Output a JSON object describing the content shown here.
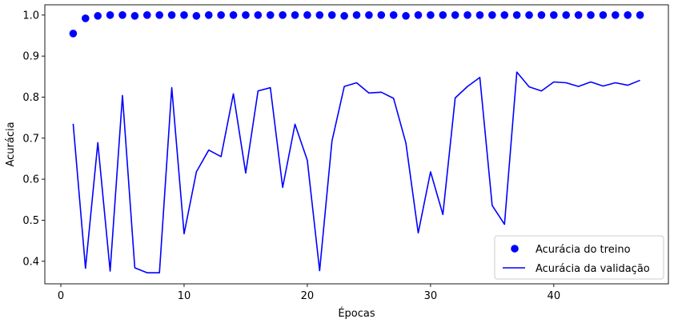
{
  "chart_data": {
    "type": "line",
    "xlabel": "Épocas",
    "ylabel": "Acurácia",
    "xlim": [
      -1.3,
      49.3
    ],
    "ylim": [
      0.345,
      1.025
    ],
    "xticks": [
      0,
      10,
      20,
      30,
      40
    ],
    "yticks": [
      0.4,
      0.5,
      0.6,
      0.7,
      0.8,
      0.9,
      1.0
    ],
    "grid": false,
    "legend_position": "lower-right",
    "x": [
      1,
      2,
      3,
      4,
      5,
      6,
      7,
      8,
      9,
      10,
      11,
      12,
      13,
      14,
      15,
      16,
      17,
      18,
      19,
      20,
      21,
      22,
      23,
      24,
      25,
      26,
      27,
      28,
      29,
      30,
      31,
      32,
      33,
      34,
      35,
      36,
      37,
      38,
      39,
      40,
      41,
      42,
      43,
      44,
      45,
      46,
      47
    ],
    "series": [
      {
        "name": "Acurácia do treino",
        "style": "markers",
        "color": "#0000ff",
        "values": [
          0.955,
          0.992,
          0.998,
          1.0,
          1.0,
          0.998,
          1.0,
          1.0,
          1.0,
          1.0,
          0.998,
          1.0,
          1.0,
          1.0,
          1.0,
          1.0,
          1.0,
          1.0,
          1.0,
          1.0,
          1.0,
          1.0,
          0.998,
          1.0,
          1.0,
          1.0,
          1.0,
          0.998,
          1.0,
          1.0,
          1.0,
          1.0,
          1.0,
          1.0,
          1.0,
          1.0,
          1.0,
          1.0,
          1.0,
          1.0,
          1.0,
          1.0,
          1.0,
          1.0,
          1.0,
          1.0,
          1.0
        ]
      },
      {
        "name": "Acurácia da validação",
        "style": "line",
        "color": "#0000ff",
        "values": [
          0.735,
          0.383,
          0.689,
          0.376,
          0.804,
          0.384,
          0.372,
          0.372,
          0.823,
          0.467,
          0.618,
          0.671,
          0.655,
          0.808,
          0.615,
          0.815,
          0.823,
          0.58,
          0.734,
          0.646,
          0.377,
          0.693,
          0.826,
          0.835,
          0.81,
          0.812,
          0.797,
          0.688,
          0.469,
          0.618,
          0.514,
          0.798,
          0.826,
          0.848,
          0.536,
          0.49,
          0.861,
          0.825,
          0.815,
          0.837,
          0.835,
          0.826,
          0.837,
          0.827,
          0.835,
          0.829,
          0.841
        ]
      }
    ]
  }
}
